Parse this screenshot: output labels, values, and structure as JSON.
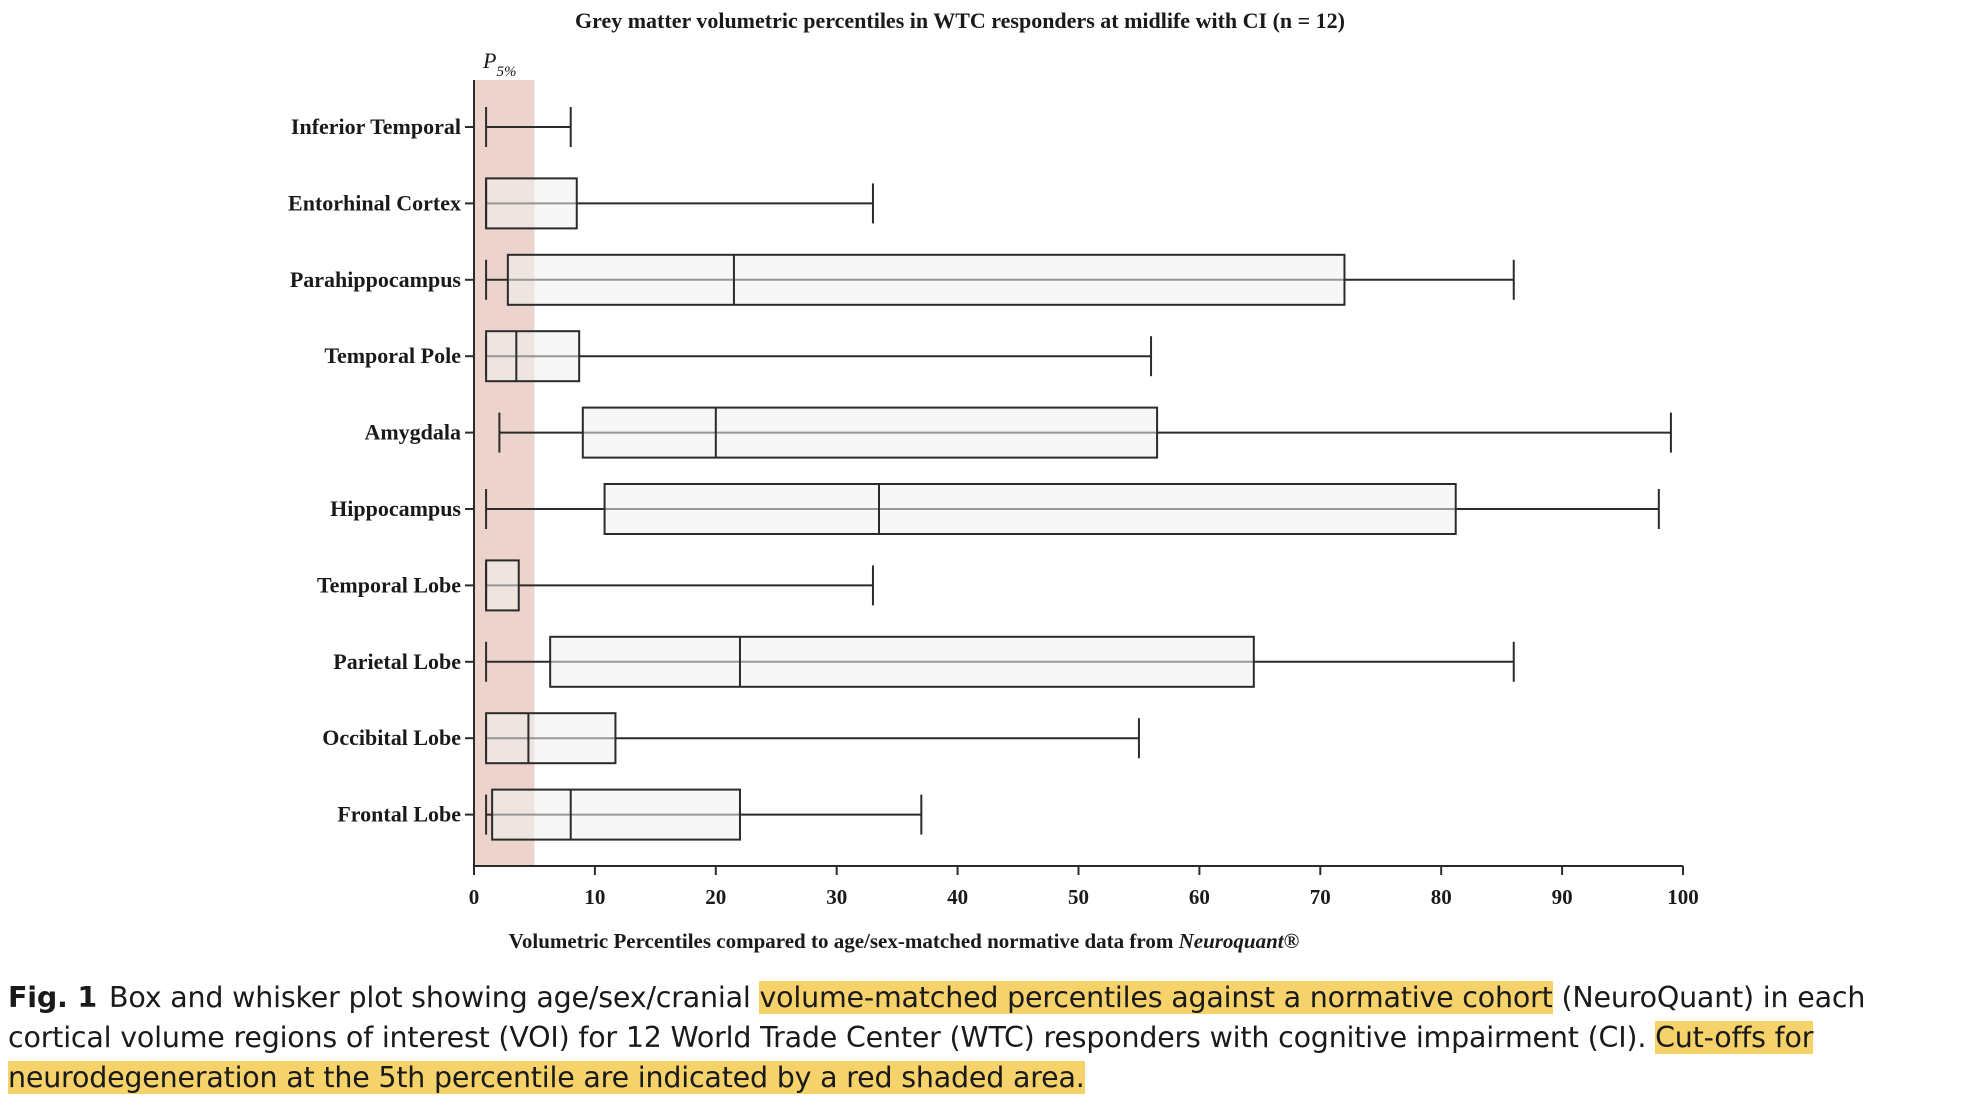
{
  "chart_data": {
    "type": "box",
    "title": "Grey matter volumetric percentiles in WTC responders at midlife with CI (n = 12)",
    "xlabel": "Volumetric Percentiles compared to age/sex-matched normative data from ",
    "xlabel_italic": "Neuroquant",
    "xlabel_suffix": "®",
    "xlim": [
      0,
      100
    ],
    "x_ticks": [
      "0",
      "10",
      "20",
      "30",
      "40",
      "50",
      "60",
      "70",
      "80",
      "90",
      "100"
    ],
    "orientation": "horizontal",
    "shaded_region": {
      "label_main": "P",
      "label_sub": "5%",
      "from": 0,
      "to": 5,
      "color": "#ecd4cd"
    },
    "categories": [
      "Inferior Temporal",
      "Entorhinal Cortex",
      "Parahippocampus",
      "Temporal Pole",
      "Amygdala",
      "Hippocampus",
      "Temporal Lobe",
      "Parietal Lobe",
      "Occibital Lobe",
      "Frontal Lobe"
    ],
    "boxes": [
      {
        "min": 1,
        "q1": 1,
        "median": 1,
        "q3": 1,
        "max": 8
      },
      {
        "min": 1,
        "q1": 1,
        "median": 1,
        "q3": 8.5,
        "max": 33
      },
      {
        "min": 1,
        "q1": 2.8,
        "median": 21.5,
        "q3": 72,
        "max": 86
      },
      {
        "min": 1,
        "q1": 1,
        "median": 3.5,
        "q3": 8.7,
        "max": 56
      },
      {
        "min": 2.1,
        "q1": 9,
        "median": 20,
        "q3": 56.5,
        "max": 99
      },
      {
        "min": 1,
        "q1": 10.8,
        "median": 33.5,
        "q3": 81.2,
        "max": 98
      },
      {
        "min": 1,
        "q1": 1,
        "median": 1,
        "q3": 3.7,
        "max": 33
      },
      {
        "min": 1,
        "q1": 6.3,
        "median": 22,
        "q3": 64.5,
        "max": 86
      },
      {
        "min": 1,
        "q1": 1,
        "median": 4.5,
        "q3": 11.7,
        "max": 55
      },
      {
        "min": 1,
        "q1": 1.5,
        "median": 8,
        "q3": 22,
        "max": 37
      }
    ],
    "box_fill": "#f1f1f1",
    "stroke_color": "#2b2b2b"
  },
  "caption": {
    "fig_label": "Fig. 1",
    "part1": "Box and whisker plot showing age/sex/cranial ",
    "highlight1": "volume-matched percentiles against a normative cohort",
    "part2": " (NeuroQuant) in each cortical volume regions of interest (VOI) for 12 World Trade Center (WTC) responders with cognitive impairment (CI). ",
    "highlight2": "Cut-offs for neurodegeneration at the 5th percentile are indicated by a red shaded area.",
    "highlight_color": "#f6d26b"
  }
}
